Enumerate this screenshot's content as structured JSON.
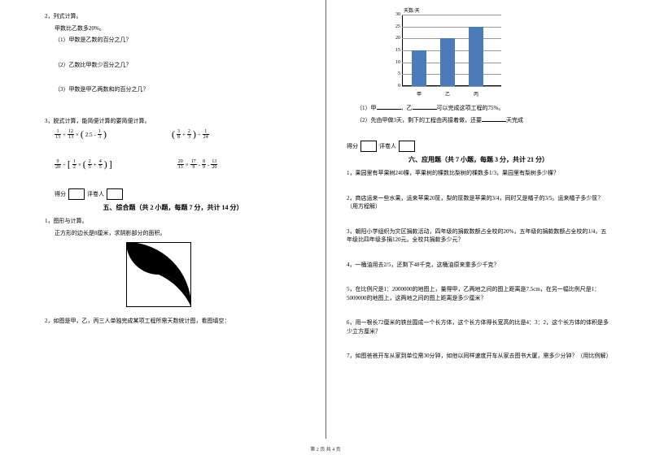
{
  "left": {
    "q2_title": "2，列式计算。",
    "q2_sub": "甲数比乙数多20%。",
    "q2_1": "（1）甲数是乙数的百分之几？",
    "q2_2": "（2）乙数比甲数少百分之几？",
    "q2_3": "（3）甲数是甲乙两数和的百分之几？",
    "q3_title": "3，脱式计算，能简便计算的要简便计算。",
    "expr1_parts": [
      "1",
      "13",
      "+",
      "12",
      "13",
      "×",
      "(",
      "2.5",
      "-",
      "1",
      "3",
      ")"
    ],
    "expr2_parts": [
      "(",
      "3",
      "8",
      "+",
      "2",
      "3",
      ")",
      "÷",
      "1",
      "24"
    ],
    "expr3_parts": [
      "9",
      "20",
      "÷",
      "[",
      "1",
      "2",
      "×",
      "(",
      "2",
      "5",
      "+",
      "4",
      "5",
      ")",
      "]"
    ],
    "expr4_parts": [
      "20",
      "13",
      "×",
      "17",
      "9",
      "-",
      "8",
      "9",
      "-",
      "13",
      "20"
    ],
    "score_label1": "得分",
    "score_label2": "评卷人",
    "section5_title": "五、综合题（共 2 小题，每题 7 分，共计 14 分）",
    "q5_1_title": "1，图形与计算。",
    "q5_1_text": "正方形的边长是8厘米，求阴影部分的面积。",
    "q5_2_title": "2，如图是甲，乙，丙三人单独完成某项工程所需天数统计图，看图填空："
  },
  "right": {
    "chart": {
      "y_title": "天数/天",
      "y_max": 30,
      "y_step": 5,
      "y_labels": [
        "0",
        "5",
        "10",
        "15",
        "20",
        "25",
        "30"
      ],
      "bars": [
        {
          "label": "甲",
          "value": 15,
          "color": "#4a7ab8"
        },
        {
          "label": "乙",
          "value": 20,
          "color": "#4a7ab8"
        },
        {
          "label": "丙",
          "value": 25,
          "color": "#4a7ab8"
        }
      ],
      "grid_color": "#999999",
      "label_color": "#000000",
      "label_fontsize": 6
    },
    "chart_q1": "（1）甲______，乙______可以完成这项工程的75%。",
    "chart_q2": "（2）先由甲做3天，剩下的工程由丙接着做，还要______天完成",
    "score_label1": "得分",
    "score_label2": "评卷人",
    "section6_title": "六、应用题（共 7 小题，每题 3 分，共计 21 分）",
    "q6_1": "1，果园里有苹果树240棵，苹果树的棵数比梨树的棵数多1/3，果园里有梨树多少棵？",
    "q6_2": "2，商店运来一些水果，运来苹果20筐，梨的筐数是苹果的3/4，同时又是橘子的3/5。运来橘子多少筐？（用方程解）",
    "q6_3": "3，朝阳小学组织为灾区捐款活动，四年级的捐款数额占全校的20%，五年级的捐款数额占全校的1/4，五年级比四年级多捐120元。全校共捐款多少元？",
    "q6_4": "4，一桶油用去2/5，还剩下48千克，这桶油原来重多少千克？",
    "q6_5": "5，在比例尺是1：2000000的地图上，量得甲，乙两地之间的图上距离是7.5cm，在另一幅比例尺是1：5000000的地图上，这两地之间的图上距离是多少厘米？",
    "q6_6": "6，用一根长72厘米的铁丝围成一个长方体，这个长方体得长宽高的比是4：3：2，这个长方体的体积是多少立方厘米？",
    "q6_7": "7，如图爸爸开车从家到单位需30分钟，如他以同样速度开车从家去图书大厦，需多少分钟？（用比例解）"
  },
  "footer": "第 2 页 共 4 页"
}
